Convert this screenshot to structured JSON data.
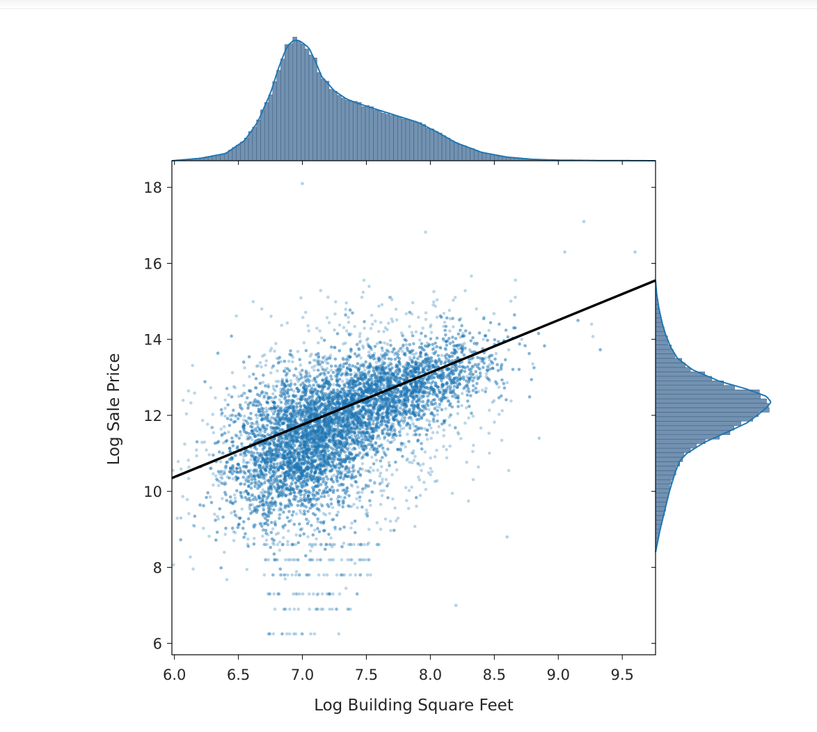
{
  "chart_data": {
    "type": "scatter",
    "title": "",
    "xlabel": "Log Building Square Feet",
    "ylabel": "Log Sale Price",
    "xlim": [
      5.98,
      9.76
    ],
    "ylim": [
      5.7,
      18.7
    ],
    "xticks": [
      6.0,
      6.5,
      7.0,
      7.5,
      8.0,
      8.5,
      9.0,
      9.5
    ],
    "xtick_labels": [
      "6.0",
      "6.5",
      "7.0",
      "7.5",
      "8.0",
      "8.5",
      "9.0",
      "9.5"
    ],
    "yticks": [
      6,
      8,
      10,
      12,
      14,
      16,
      18
    ],
    "ytick_labels": [
      "6",
      "8",
      "10",
      "12",
      "14",
      "16",
      "18"
    ],
    "grid": false,
    "legend": "none",
    "point_color": "#1f77b4",
    "point_alpha": 0.3,
    "line_color": "#000000",
    "hist_color": "#5a7fa3",
    "kde_color": "#1f77b4",
    "regression_line": {
      "x": [
        5.98,
        9.76
      ],
      "y": [
        10.35,
        15.55
      ]
    },
    "marginal_x_kde": {
      "x": [
        5.98,
        6.2,
        6.4,
        6.55,
        6.65,
        6.75,
        6.82,
        6.88,
        6.93,
        6.97,
        7.0,
        7.05,
        7.1,
        7.15,
        7.25,
        7.35,
        7.45,
        7.6,
        7.75,
        7.9,
        8.05,
        8.2,
        8.4,
        8.6,
        8.8,
        9.0,
        9.3,
        9.76
      ],
      "density": [
        0.0,
        0.02,
        0.06,
        0.17,
        0.32,
        0.56,
        0.79,
        0.95,
        1.0,
        1.0,
        0.98,
        0.94,
        0.83,
        0.7,
        0.58,
        0.51,
        0.47,
        0.42,
        0.37,
        0.32,
        0.24,
        0.15,
        0.07,
        0.03,
        0.012,
        0.005,
        0.002,
        0.0
      ]
    },
    "marginal_y_kde": {
      "y": [
        8.4,
        9.0,
        9.5,
        10.0,
        10.5,
        10.8,
        11.0,
        11.3,
        11.6,
        11.8,
        12.0,
        12.2,
        12.35,
        12.5,
        12.7,
        12.9,
        13.2,
        13.5,
        13.8,
        14.1,
        14.4,
        14.8,
        15.2,
        15.55
      ],
      "density": [
        0.0,
        0.04,
        0.08,
        0.12,
        0.17,
        0.21,
        0.27,
        0.43,
        0.65,
        0.79,
        0.88,
        0.96,
        1.0,
        0.96,
        0.78,
        0.55,
        0.32,
        0.19,
        0.13,
        0.09,
        0.06,
        0.03,
        0.01,
        0.0
      ]
    }
  }
}
